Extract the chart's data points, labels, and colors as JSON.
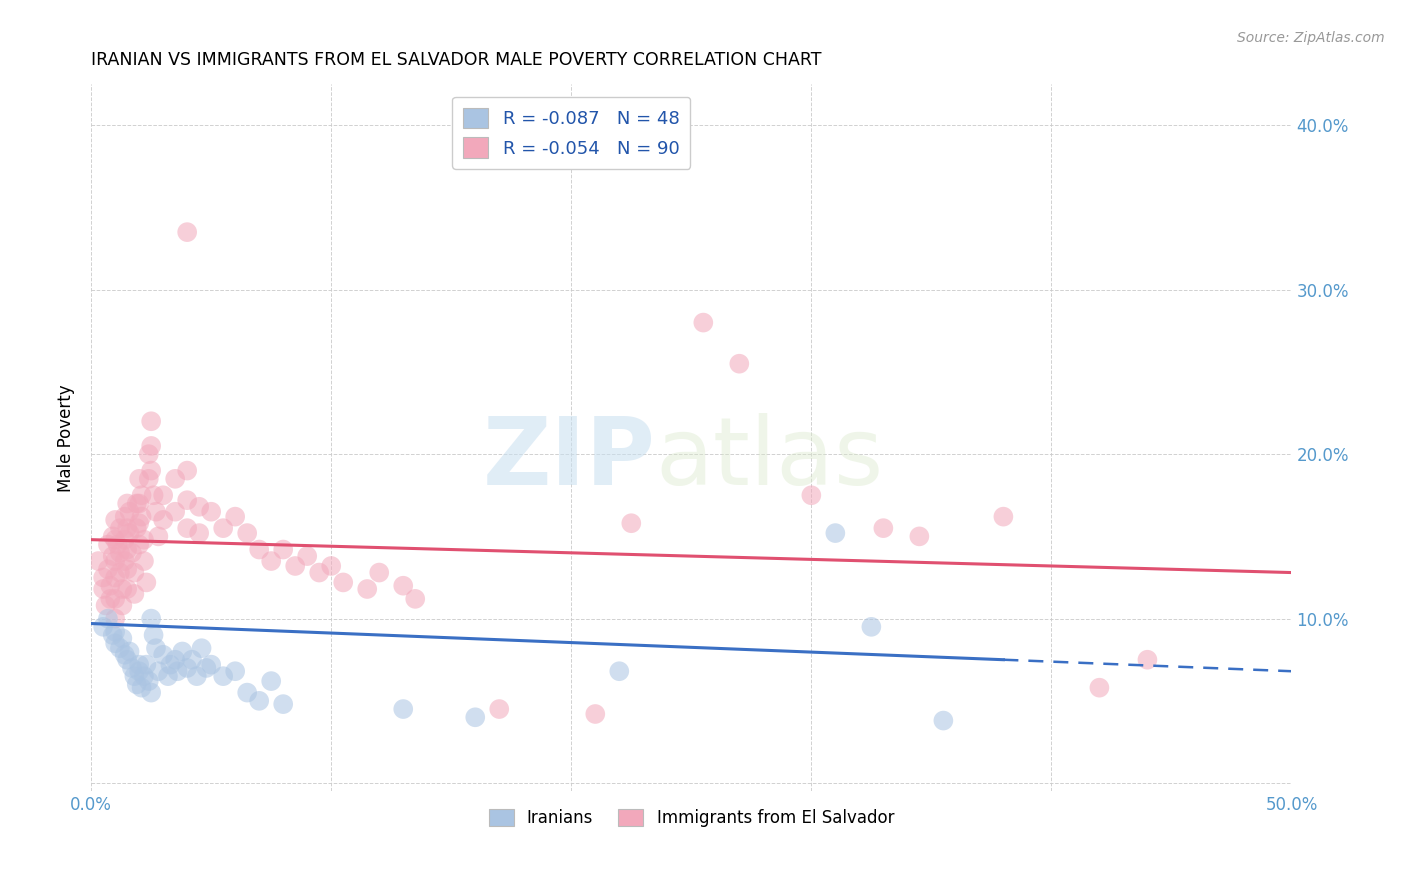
{
  "title": "IRANIAN VS IMMIGRANTS FROM EL SALVADOR MALE POVERTY CORRELATION CHART",
  "source": "Source: ZipAtlas.com",
  "ylabel": "Male Poverty",
  "y_tick_labels": [
    "",
    "10.0%",
    "20.0%",
    "30.0%",
    "40.0%"
  ],
  "y_tick_values": [
    0.0,
    0.1,
    0.2,
    0.3,
    0.4
  ],
  "x_range": [
    0.0,
    0.5
  ],
  "y_range": [
    -0.005,
    0.425
  ],
  "watermark_zip": "ZIP",
  "watermark_atlas": "atlas",
  "legend_blue_label": "R = -0.087   N = 48",
  "legend_pink_label": "R = -0.054   N = 90",
  "legend_bottom_blue": "Iranians",
  "legend_bottom_pink": "Immigrants from El Salvador",
  "blue_color": "#aac4e2",
  "pink_color": "#f2a8bb",
  "blue_line_color": "#3a6fc4",
  "pink_line_color": "#e05070",
  "blue_scatter": [
    [
      0.005,
      0.095
    ],
    [
      0.007,
      0.1
    ],
    [
      0.009,
      0.09
    ],
    [
      0.01,
      0.085
    ],
    [
      0.01,
      0.092
    ],
    [
      0.012,
      0.082
    ],
    [
      0.013,
      0.088
    ],
    [
      0.014,
      0.078
    ],
    [
      0.015,
      0.075
    ],
    [
      0.016,
      0.08
    ],
    [
      0.017,
      0.07
    ],
    [
      0.018,
      0.065
    ],
    [
      0.019,
      0.06
    ],
    [
      0.02,
      0.068
    ],
    [
      0.02,
      0.072
    ],
    [
      0.021,
      0.058
    ],
    [
      0.022,
      0.065
    ],
    [
      0.023,
      0.072
    ],
    [
      0.024,
      0.062
    ],
    [
      0.025,
      0.055
    ],
    [
      0.025,
      0.1
    ],
    [
      0.026,
      0.09
    ],
    [
      0.027,
      0.082
    ],
    [
      0.028,
      0.068
    ],
    [
      0.03,
      0.078
    ],
    [
      0.032,
      0.065
    ],
    [
      0.033,
      0.072
    ],
    [
      0.035,
      0.075
    ],
    [
      0.036,
      0.068
    ],
    [
      0.038,
      0.08
    ],
    [
      0.04,
      0.07
    ],
    [
      0.042,
      0.075
    ],
    [
      0.044,
      0.065
    ],
    [
      0.046,
      0.082
    ],
    [
      0.048,
      0.07
    ],
    [
      0.05,
      0.072
    ],
    [
      0.055,
      0.065
    ],
    [
      0.06,
      0.068
    ],
    [
      0.065,
      0.055
    ],
    [
      0.07,
      0.05
    ],
    [
      0.075,
      0.062
    ],
    [
      0.08,
      0.048
    ],
    [
      0.13,
      0.045
    ],
    [
      0.16,
      0.04
    ],
    [
      0.22,
      0.068
    ],
    [
      0.31,
      0.152
    ],
    [
      0.325,
      0.095
    ],
    [
      0.355,
      0.038
    ]
  ],
  "pink_scatter": [
    [
      0.003,
      0.135
    ],
    [
      0.005,
      0.125
    ],
    [
      0.005,
      0.118
    ],
    [
      0.006,
      0.108
    ],
    [
      0.007,
      0.145
    ],
    [
      0.007,
      0.13
    ],
    [
      0.008,
      0.12
    ],
    [
      0.008,
      0.112
    ],
    [
      0.009,
      0.15
    ],
    [
      0.009,
      0.138
    ],
    [
      0.01,
      0.16
    ],
    [
      0.01,
      0.148
    ],
    [
      0.01,
      0.135
    ],
    [
      0.01,
      0.125
    ],
    [
      0.01,
      0.112
    ],
    [
      0.01,
      0.1
    ],
    [
      0.011,
      0.145
    ],
    [
      0.012,
      0.155
    ],
    [
      0.012,
      0.14
    ],
    [
      0.012,
      0.128
    ],
    [
      0.013,
      0.118
    ],
    [
      0.013,
      0.108
    ],
    [
      0.014,
      0.162
    ],
    [
      0.014,
      0.148
    ],
    [
      0.014,
      0.135
    ],
    [
      0.015,
      0.17
    ],
    [
      0.015,
      0.155
    ],
    [
      0.015,
      0.142
    ],
    [
      0.015,
      0.13
    ],
    [
      0.015,
      0.118
    ],
    [
      0.016,
      0.165
    ],
    [
      0.016,
      0.152
    ],
    [
      0.017,
      0.14
    ],
    [
      0.018,
      0.128
    ],
    [
      0.018,
      0.115
    ],
    [
      0.019,
      0.17
    ],
    [
      0.019,
      0.155
    ],
    [
      0.02,
      0.185
    ],
    [
      0.02,
      0.17
    ],
    [
      0.02,
      0.158
    ],
    [
      0.02,
      0.145
    ],
    [
      0.021,
      0.175
    ],
    [
      0.021,
      0.162
    ],
    [
      0.022,
      0.148
    ],
    [
      0.022,
      0.135
    ],
    [
      0.023,
      0.122
    ],
    [
      0.024,
      0.2
    ],
    [
      0.024,
      0.185
    ],
    [
      0.025,
      0.22
    ],
    [
      0.025,
      0.205
    ],
    [
      0.025,
      0.19
    ],
    [
      0.026,
      0.175
    ],
    [
      0.027,
      0.165
    ],
    [
      0.028,
      0.15
    ],
    [
      0.03,
      0.175
    ],
    [
      0.03,
      0.16
    ],
    [
      0.035,
      0.185
    ],
    [
      0.035,
      0.165
    ],
    [
      0.04,
      0.19
    ],
    [
      0.04,
      0.172
    ],
    [
      0.04,
      0.155
    ],
    [
      0.045,
      0.168
    ],
    [
      0.045,
      0.152
    ],
    [
      0.05,
      0.165
    ],
    [
      0.055,
      0.155
    ],
    [
      0.06,
      0.162
    ],
    [
      0.065,
      0.152
    ],
    [
      0.07,
      0.142
    ],
    [
      0.075,
      0.135
    ],
    [
      0.08,
      0.142
    ],
    [
      0.085,
      0.132
    ],
    [
      0.09,
      0.138
    ],
    [
      0.095,
      0.128
    ],
    [
      0.1,
      0.132
    ],
    [
      0.105,
      0.122
    ],
    [
      0.115,
      0.118
    ],
    [
      0.12,
      0.128
    ],
    [
      0.13,
      0.12
    ],
    [
      0.135,
      0.112
    ],
    [
      0.17,
      0.045
    ],
    [
      0.21,
      0.042
    ],
    [
      0.225,
      0.158
    ],
    [
      0.255,
      0.28
    ],
    [
      0.27,
      0.255
    ],
    [
      0.3,
      0.175
    ],
    [
      0.33,
      0.155
    ],
    [
      0.345,
      0.15
    ],
    [
      0.38,
      0.162
    ],
    [
      0.42,
      0.058
    ],
    [
      0.44,
      0.075
    ],
    [
      0.04,
      0.335
    ]
  ],
  "blue_line_solid": {
    "x": [
      0.0,
      0.38
    ],
    "y": [
      0.097,
      0.075
    ]
  },
  "blue_line_dashed": {
    "x": [
      0.38,
      0.5
    ],
    "y": [
      0.075,
      0.068
    ]
  },
  "pink_line": {
    "x": [
      0.0,
      0.5
    ],
    "y": [
      0.148,
      0.128
    ]
  }
}
